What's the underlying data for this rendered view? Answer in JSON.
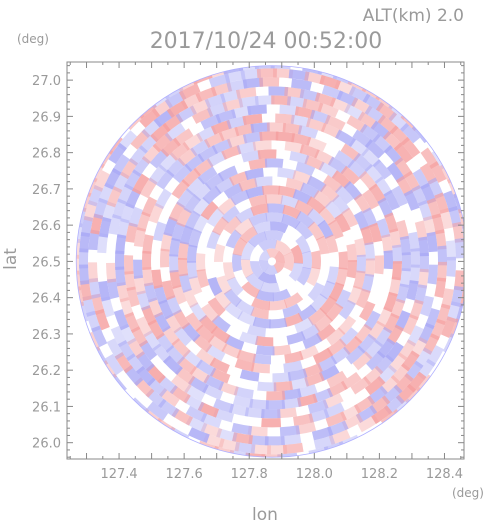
{
  "header": {
    "altitude": "ALT(km) 2.0",
    "timestamp": "2017/10/24 00:52:00"
  },
  "chart_data": {
    "type": "heatmap",
    "shape": "circular radar scan",
    "xlabel": "lon",
    "ylabel": "lat",
    "x_unit": "(deg)",
    "y_unit": "(deg)",
    "xlim": [
      127.24,
      128.46
    ],
    "ylim": [
      25.955,
      27.05
    ],
    "x_ticks": [
      127.4,
      127.6,
      127.8,
      128.0,
      128.2,
      128.4
    ],
    "x_tick_labels": [
      "127.4",
      "127.6",
      "127.8",
      "128.0",
      "128.2",
      "128.4"
    ],
    "y_ticks": [
      26.0,
      26.1,
      26.2,
      26.3,
      26.4,
      26.5,
      26.6,
      26.7,
      26.8,
      26.9,
      27.0
    ],
    "y_tick_labels": [
      "26.0",
      "26.1",
      "26.2",
      "26.3",
      "26.4",
      "26.5",
      "26.6",
      "26.7",
      "26.8",
      "26.9",
      "27.0"
    ],
    "center": {
      "lon": 127.87,
      "lat": 26.5
    },
    "radius_deg_lat": 0.54,
    "colormap": {
      "positive": "#f5a0a0",
      "negative": "#a8a8f5",
      "neutral": "#ffffff"
    },
    "grid": false,
    "legend": "none"
  }
}
